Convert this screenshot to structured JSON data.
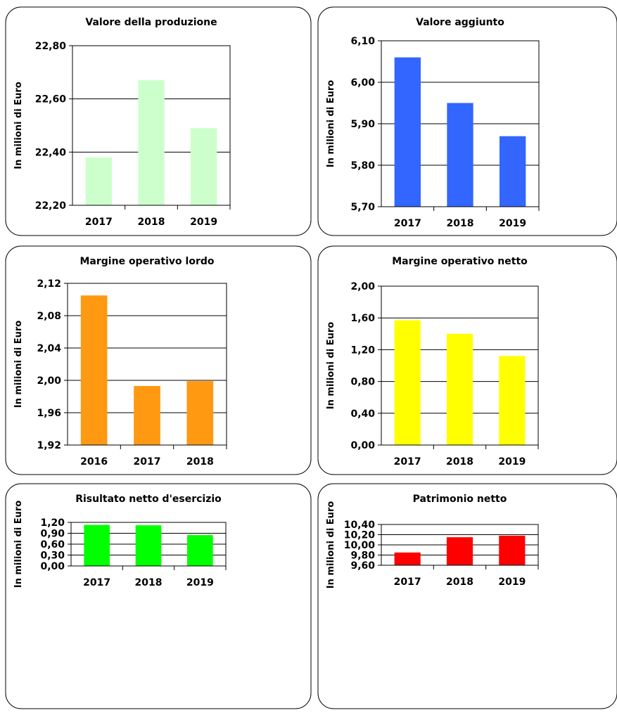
{
  "y_axis_label": "In milioni di Euro",
  "chart_data": [
    {
      "type": "bar",
      "title": "Valore della produzione",
      "ylabel": "In milioni di Euro",
      "categories": [
        "2017",
        "2018",
        "2019"
      ],
      "values": [
        22.38,
        22.67,
        22.49
      ],
      "ylim": [
        22.2,
        22.8
      ],
      "yticks": [
        "22,20",
        "22,40",
        "22,60",
        "22,80"
      ],
      "color": "#ccffcc",
      "grid": true
    },
    {
      "type": "bar",
      "title": "Valore aggiunto",
      "ylabel": "In milioni di Euro",
      "categories": [
        "2017",
        "2018",
        "2019"
      ],
      "values": [
        6.06,
        5.95,
        5.87
      ],
      "ylim": [
        5.7,
        6.1
      ],
      "yticks": [
        "5,70",
        "5,80",
        "5,90",
        "6,00",
        "6,10"
      ],
      "color": "#3366ff",
      "grid": true
    },
    {
      "type": "bar",
      "title": "Margine operativo lordo",
      "ylabel": "In milioni di Euro",
      "categories": [
        "2016",
        "2017",
        "2018"
      ],
      "values": [
        2.105,
        1.993,
        1.999
      ],
      "ylim": [
        1.92,
        2.12
      ],
      "yticks": [
        "1,92",
        "1,96",
        "2,00",
        "2,04",
        "2,08",
        "2,12"
      ],
      "color": "#ff9912",
      "grid": true
    },
    {
      "type": "bar",
      "title": "Margine operativo netto",
      "ylabel": "In milioni di Euro",
      "categories": [
        "2017",
        "2018",
        "2019"
      ],
      "values": [
        1.57,
        1.4,
        1.12
      ],
      "ylim": [
        0,
        2
      ],
      "yticks": [
        "0,00",
        "0,40",
        "0,80",
        "1,20",
        "1,60",
        "2,00"
      ],
      "color": "#ffff00",
      "grid": true
    },
    {
      "type": "bar",
      "title": "Risultato netto d'esercizio",
      "ylabel": "In milioni di Euro",
      "categories": [
        "2017",
        "2018",
        "2019"
      ],
      "values": [
        1.13,
        1.12,
        0.85
      ],
      "ylim": [
        0,
        1.2
      ],
      "yticks": [
        "0,00",
        "0,30",
        "0,60",
        "0,90",
        "1,20"
      ],
      "color": "#00ff00",
      "grid": true
    },
    {
      "type": "bar",
      "title": "Patrimonio netto",
      "ylabel": "In milioni di Euro",
      "categories": [
        "2017",
        "2018",
        "2019"
      ],
      "values": [
        9.85,
        10.15,
        10.18
      ],
      "ylim": [
        9.6,
        10.4
      ],
      "yticks": [
        "9,60",
        "9,80",
        "10,00",
        "10,20",
        "10,40"
      ],
      "color": "#ff0000",
      "grid": true
    }
  ]
}
